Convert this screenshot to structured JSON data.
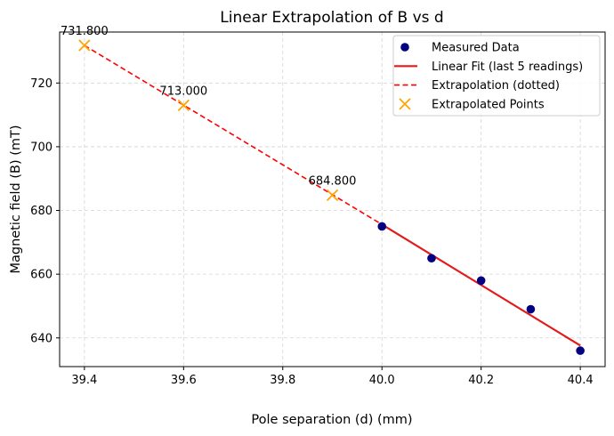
{
  "chart_data": {
    "type": "scatter",
    "title": "Linear Extrapolation of B vs d",
    "xlabel": "Pole separation (d) (mm)",
    "ylabel": "Magnetic field (B) (mT)",
    "xlim": [
      39.35,
      40.45
    ],
    "ylim": [
      631,
      736
    ],
    "xticks": [
      "39.4",
      "39.6",
      "39.8",
      "40.0",
      "40.2",
      "40.4"
    ],
    "yticks": [
      "640",
      "660",
      "680",
      "700",
      "720"
    ],
    "grid": true,
    "legend_position": "top-right",
    "series": [
      {
        "name": "Measured Data",
        "kind": "scatter",
        "color": "#000080",
        "x": [
          40.0,
          40.1,
          40.2,
          40.3,
          40.4
        ],
        "y": [
          675,
          665,
          658,
          649,
          636
        ]
      },
      {
        "name": "Linear Fit (last 5 readings)",
        "kind": "line",
        "color": "#e31a1c",
        "x": [
          40.0,
          40.4
        ],
        "y": [
          675.6,
          637.6
        ]
      },
      {
        "name": "Extrapolation (dotted)",
        "kind": "dashed-line",
        "color": "#ff0000",
        "x": [
          39.4,
          40.0
        ],
        "y": [
          731.8,
          675.6
        ]
      },
      {
        "name": "Extrapolated Points",
        "kind": "x-marker",
        "color": "#ffa500",
        "x": [
          39.4,
          39.6,
          39.9
        ],
        "y": [
          731.8,
          713.0,
          684.8
        ],
        "labels": [
          "731.800",
          "713.000",
          "684.800"
        ]
      }
    ]
  }
}
